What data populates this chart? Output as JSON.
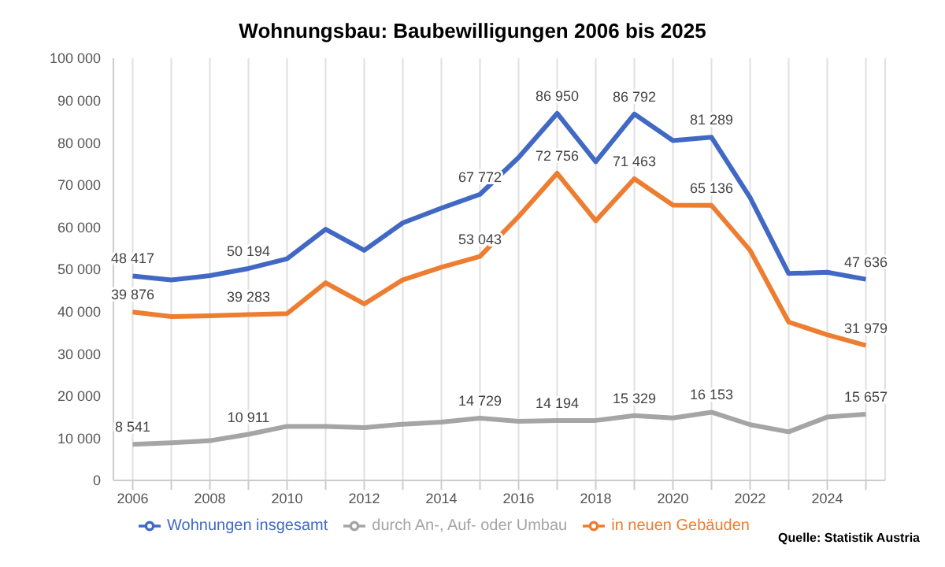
{
  "chart_data": {
    "type": "line",
    "title": "Wohnungsbau: Baubewilligungen 2006 bis 2025",
    "x": [
      2006,
      2007,
      2008,
      2009,
      2010,
      2011,
      2012,
      2013,
      2014,
      2015,
      2016,
      2017,
      2018,
      2019,
      2020,
      2021,
      2022,
      2023,
      2024,
      2025
    ],
    "series": [
      {
        "name": "Wohnungen insgesamt",
        "color": "#4169c4",
        "values": [
          48417,
          47500,
          48500,
          50194,
          52500,
          59500,
          54500,
          61000,
          64500,
          67772,
          76500,
          86950,
          75500,
          86792,
          80500,
          81289,
          67000,
          49000,
          49300,
          47636
        ],
        "value_labels": [
          "48 417",
          null,
          null,
          "50 194",
          null,
          null,
          null,
          null,
          null,
          "67 772",
          null,
          "86 950",
          null,
          "86 792",
          null,
          "81 289",
          null,
          null,
          null,
          "47 636"
        ]
      },
      {
        "name": "in neuen Gebäuden",
        "color": "#ed7d31",
        "values": [
          39876,
          38800,
          39000,
          39283,
          39500,
          46800,
          41800,
          47500,
          50500,
          53043,
          62500,
          72756,
          61500,
          71463,
          65200,
          65136,
          54500,
          37500,
          34500,
          31979
        ],
        "value_labels": [
          "39 876",
          null,
          null,
          "39 283",
          null,
          null,
          null,
          null,
          null,
          "53 043",
          null,
          "72 756",
          null,
          "71 463",
          null,
          "65 136",
          null,
          null,
          null,
          "31 979"
        ]
      },
      {
        "name": "durch An-, Auf- oder Umbau",
        "color": "#a5a5a5",
        "values": [
          8541,
          8900,
          9400,
          10911,
          12800,
          12800,
          12500,
          13300,
          13800,
          14729,
          14000,
          14194,
          14200,
          15329,
          14800,
          16153,
          13200,
          11500,
          15000,
          15657
        ],
        "value_labels": [
          "8 541",
          null,
          null,
          "10 911",
          null,
          null,
          null,
          null,
          null,
          "14 729",
          null,
          "14 194",
          null,
          "15 329",
          null,
          "16 153",
          null,
          null,
          null,
          "15 657"
        ]
      }
    ],
    "xlim": [
      2005.5,
      2025.5
    ],
    "xticks": [
      2006,
      {
        "value": 2007,
        "label": null
      },
      2008,
      {
        "value": 2009,
        "label": null
      },
      2010,
      {
        "value": 2011,
        "label": null
      },
      2012,
      {
        "value": 2013,
        "label": null
      },
      2014,
      {
        "value": 2015,
        "label": null
      },
      2016,
      {
        "value": 2017,
        "label": null
      },
      2018,
      {
        "value": 2019,
        "label": null
      },
      2020,
      {
        "value": 2021,
        "label": null
      },
      2022,
      {
        "value": 2023,
        "label": null
      },
      2024,
      {
        "value": 2025,
        "label": null
      }
    ],
    "ylim": [
      0,
      100000
    ],
    "yticks": [
      {
        "value": 0,
        "label": "0"
      },
      {
        "value": 10000,
        "label": "10 000"
      },
      {
        "value": 20000,
        "label": "20 000"
      },
      {
        "value": 30000,
        "label": "30 000"
      },
      {
        "value": 40000,
        "label": "40 000"
      },
      {
        "value": 50000,
        "label": "50 000"
      },
      {
        "value": 60000,
        "label": "60 000"
      },
      {
        "value": 70000,
        "label": "70 000"
      },
      {
        "value": 80000,
        "label": "80 000"
      },
      {
        "value": 90000,
        "label": "90 000"
      },
      {
        "value": 100000,
        "label": "100 000"
      }
    ],
    "grid": "x",
    "legend": "bottom",
    "marker": "none",
    "line_style": "solid",
    "annotations": [
      "Quelle: Statistik Austria"
    ]
  }
}
